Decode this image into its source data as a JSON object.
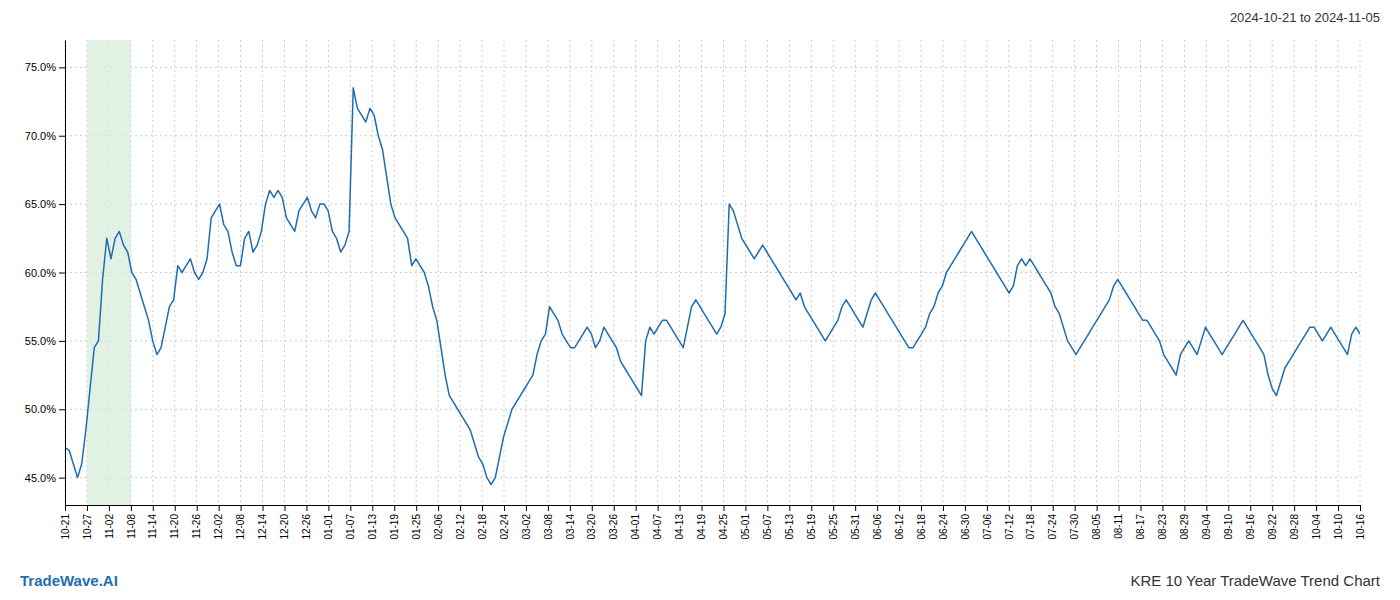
{
  "chart_data": {
    "type": "line",
    "title": "KRE 10 Year TradeWave Trend Chart",
    "subtitle": "2024-10-21 to 2024-11-05",
    "annotations": [
      {
        "text": "TradeWave.AI",
        "color": "#1f6cb0"
      }
    ],
    "color": "#1f6cb0",
    "grid": true,
    "shaded_region": {
      "from": "10-27",
      "to": "11-08",
      "color": "#d4edda"
    },
    "ylim": [
      43.0,
      77.0
    ],
    "yticks": [
      {
        "value": 45.0,
        "label": "45.0%"
      },
      {
        "value": 50.0,
        "label": "50.0%"
      },
      {
        "value": 55.0,
        "label": "55.0%"
      },
      {
        "value": 60.0,
        "label": "60.0%"
      },
      {
        "value": 65.0,
        "label": "65.0%"
      },
      {
        "value": 70.0,
        "label": "70.0%"
      },
      {
        "value": 75.0,
        "label": "75.0%"
      }
    ],
    "xlim": [
      0,
      310
    ],
    "xticks": [
      {
        "value": 0,
        "label": "10-21"
      },
      {
        "value": 5.254237,
        "label": "10-27"
      },
      {
        "value": 10.508475,
        "label": "11-02"
      },
      {
        "value": 15.762712,
        "label": "11-08"
      },
      {
        "value": 21.016949,
        "label": "11-14"
      },
      {
        "value": 26.271186,
        "label": "11-20"
      },
      {
        "value": 31.525424,
        "label": "11-26"
      },
      {
        "value": 36.779661,
        "label": "12-02"
      },
      {
        "value": 42.033898,
        "label": "12-08"
      },
      {
        "value": 47.288136,
        "label": "12-14"
      },
      {
        "value": 52.542373,
        "label": "12-20"
      },
      {
        "value": 57.79661,
        "label": "12-26"
      },
      {
        "value": 63.050847,
        "label": "01-01"
      },
      {
        "value": 68.305085,
        "label": "01-07"
      },
      {
        "value": 73.559322,
        "label": "01-13"
      },
      {
        "value": 78.813559,
        "label": "01-19"
      },
      {
        "value": 84.067797,
        "label": "01-25"
      },
      {
        "value": 89.322034,
        "label": "02-06"
      },
      {
        "value": 94.576271,
        "label": "02-12"
      },
      {
        "value": 99.830508,
        "label": "02-18"
      },
      {
        "value": 105.084746,
        "label": "02-24"
      },
      {
        "value": 110.338983,
        "label": "03-02"
      },
      {
        "value": 115.59322,
        "label": "03-08"
      },
      {
        "value": 120.847458,
        "label": "03-14"
      },
      {
        "value": 126.101695,
        "label": "03-20"
      },
      {
        "value": 131.355932,
        "label": "03-26"
      },
      {
        "value": 136.610169,
        "label": "04-01"
      },
      {
        "value": 141.864407,
        "label": "04-07"
      },
      {
        "value": 147.118644,
        "label": "04-13"
      },
      {
        "value": 152.372881,
        "label": "04-19"
      },
      {
        "value": 157.627119,
        "label": "04-25"
      },
      {
        "value": 162.881356,
        "label": "05-01"
      },
      {
        "value": 168.135593,
        "label": "05-07"
      },
      {
        "value": 173.389831,
        "label": "05-13"
      },
      {
        "value": 178.644068,
        "label": "05-19"
      },
      {
        "value": 183.898305,
        "label": "05-25"
      },
      {
        "value": 189.152542,
        "label": "05-31"
      },
      {
        "value": 194.40678,
        "label": "06-06"
      },
      {
        "value": 199.661017,
        "label": "06-12"
      },
      {
        "value": 204.915254,
        "label": "06-18"
      },
      {
        "value": 210.169492,
        "label": "06-24"
      },
      {
        "value": 215.423729,
        "label": "06-30"
      },
      {
        "value": 220.677966,
        "label": "07-06"
      },
      {
        "value": 225.932203,
        "label": "07-12"
      },
      {
        "value": 231.186441,
        "label": "07-18"
      },
      {
        "value": 236.440678,
        "label": "07-24"
      },
      {
        "value": 241.694915,
        "label": "07-30"
      },
      {
        "value": 246.949153,
        "label": "08-05"
      },
      {
        "value": 252.20339,
        "label": "08-11"
      },
      {
        "value": 257.457627,
        "label": "08-17"
      },
      {
        "value": 262.711864,
        "label": "08-23"
      },
      {
        "value": 267.966102,
        "label": "08-29"
      },
      {
        "value": 273.220339,
        "label": "09-04"
      },
      {
        "value": 278.474576,
        "label": "09-10"
      },
      {
        "value": 283.728814,
        "label": "09-16"
      },
      {
        "value": 288.983051,
        "label": "09-22"
      },
      {
        "value": 294.237288,
        "label": "09-28"
      },
      {
        "value": 299.491525,
        "label": "10-04"
      },
      {
        "value": 304.745763,
        "label": "10-10"
      },
      {
        "value": 310,
        "label": "10-16"
      }
    ],
    "values": [
      47.2,
      47.0,
      46.0,
      45.0,
      46.0,
      48.5,
      51.5,
      54.5,
      55.0,
      59.5,
      62.5,
      61.0,
      62.5,
      63.0,
      62.0,
      61.5,
      60.0,
      59.5,
      58.5,
      57.5,
      56.5,
      55.0,
      54.0,
      54.5,
      56.0,
      57.5,
      58.0,
      60.5,
      60.0,
      60.5,
      61.0,
      60.0,
      59.5,
      60.0,
      61.0,
      64.0,
      64.5,
      65.0,
      63.5,
      63.0,
      61.5,
      60.5,
      60.5,
      62.5,
      63.0,
      61.5,
      62.0,
      63.0,
      65.0,
      66.0,
      65.5,
      66.0,
      65.5,
      64.0,
      63.5,
      63.0,
      64.5,
      65.0,
      65.5,
      64.5,
      64.0,
      65.0,
      65.0,
      64.5,
      63.0,
      62.5,
      61.5,
      62.0,
      63.0,
      73.5,
      72.0,
      71.5,
      71.0,
      72.0,
      71.5,
      70.0,
      69.0,
      67.0,
      65.0,
      64.0,
      63.5,
      63.0,
      62.5,
      60.5,
      61.0,
      60.5,
      60.0,
      59.0,
      57.5,
      56.5,
      54.5,
      52.5,
      51.0,
      50.5,
      50.0,
      49.5,
      49.0,
      48.5,
      47.5,
      46.5,
      46.0,
      45.0,
      44.5,
      45.0,
      46.5,
      48.0,
      49.0,
      50.0,
      50.5,
      51.0,
      51.5,
      52.0,
      52.5,
      54.0,
      55.0,
      55.5,
      57.5,
      57.0,
      56.5,
      55.5,
      55.0,
      54.5,
      54.5,
      55.0,
      55.5,
      56.0,
      55.5,
      54.5,
      55.0,
      56.0,
      55.5,
      55.0,
      54.5,
      53.5,
      53.0,
      52.5,
      52.0,
      51.5,
      51.0,
      55.0,
      56.0,
      55.5,
      56.0,
      56.5,
      56.5,
      56.0,
      55.5,
      55.0,
      54.5,
      56.0,
      57.5,
      58.0,
      57.5,
      57.0,
      56.5,
      56.0,
      55.5,
      56.0,
      57.0,
      65.0,
      64.5,
      63.5,
      62.5,
      62.0,
      61.5,
      61.0,
      61.5,
      62.0,
      61.5,
      61.0,
      60.5,
      60.0,
      59.5,
      59.0,
      58.5,
      58.0,
      58.5,
      57.5,
      57.0,
      56.5,
      56.0,
      55.5,
      55.0,
      55.5,
      56.0,
      56.5,
      57.5,
      58.0,
      57.5,
      57.0,
      56.5,
      56.0,
      57.0,
      58.0,
      58.5,
      58.0,
      57.5,
      57.0,
      56.5,
      56.0,
      55.5,
      55.0,
      54.5,
      54.5,
      55.0,
      55.5,
      56.0,
      57.0,
      57.5,
      58.5,
      59.0,
      60.0,
      60.5,
      61.0,
      61.5,
      62.0,
      62.5,
      63.0,
      62.5,
      62.0,
      61.5,
      61.0,
      60.5,
      60.0,
      59.5,
      59.0,
      58.5,
      59.0,
      60.5,
      61.0,
      60.5,
      61.0,
      60.5,
      60.0,
      59.5,
      59.0,
      58.5,
      57.5,
      57.0,
      56.0,
      55.0,
      54.5,
      54.0,
      54.5,
      55.0,
      55.5,
      56.0,
      56.5,
      57.0,
      57.5,
      58.0,
      59.0,
      59.5,
      59.0,
      58.5,
      58.0,
      57.5,
      57.0,
      56.5,
      56.5,
      56.0,
      55.5,
      55.0,
      54.0,
      53.5,
      53.0,
      52.5,
      54.0,
      54.5,
      55.0,
      54.5,
      54.0,
      55.0,
      56.0,
      55.5,
      55.0,
      54.5,
      54.0,
      54.5,
      55.0,
      55.5,
      56.0,
      56.5,
      56.0,
      55.5,
      55.0,
      54.5,
      54.0,
      52.5,
      51.5,
      51.0,
      52.0,
      53.0,
      53.5,
      54.0,
      54.5,
      55.0,
      55.5,
      56.0,
      56.0,
      55.5,
      55.0,
      55.5,
      56.0,
      55.5,
      55.0,
      54.5,
      54.0,
      55.5,
      56.0,
      55.5
    ]
  }
}
